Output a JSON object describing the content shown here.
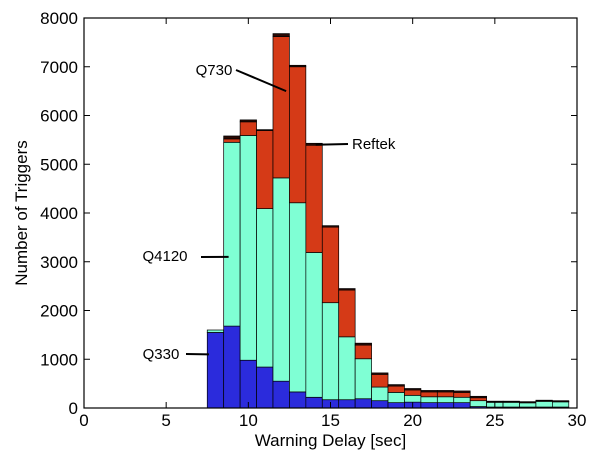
{
  "chart_data": {
    "type": "bar",
    "stacked": true,
    "xlabel": "Warning Delay [sec]",
    "ylabel": "Number of Triggers",
    "xlim": [
      0,
      30
    ],
    "ylim": [
      0,
      8000
    ],
    "xticks": [
      0,
      5,
      10,
      15,
      20,
      25,
      30
    ],
    "yticks": [
      0,
      1000,
      2000,
      3000,
      4000,
      5000,
      6000,
      7000,
      8000
    ],
    "grid": false,
    "bin_width": 1,
    "x": [
      8,
      9,
      10,
      11,
      12,
      13,
      14,
      15,
      16,
      17,
      18,
      19,
      20,
      21,
      22,
      23,
      24,
      25,
      26,
      27,
      28,
      29
    ],
    "series": [
      {
        "name": "Q330",
        "color": "#2b2bdc",
        "values": [
          1550,
          1680,
          980,
          840,
          550,
          330,
          220,
          170,
          170,
          190,
          150,
          110,
          120,
          110,
          110,
          110,
          30,
          20,
          20,
          20,
          20,
          20
        ]
      },
      {
        "name": "Q4120",
        "color": "#7fffd4",
        "values": [
          50,
          3770,
          4610,
          3250,
          4170,
          3880,
          2970,
          1990,
          1290,
          820,
          280,
          210,
          140,
          120,
          120,
          110,
          120,
          100,
          100,
          90,
          120,
          110
        ]
      },
      {
        "name": "Q730",
        "color": "#d53a17",
        "values": [
          0,
          70,
          280,
          1600,
          2900,
          2790,
          2200,
          1550,
          960,
          280,
          260,
          130,
          110,
          100,
          100,
          100,
          60,
          10,
          10,
          10,
          10,
          10
        ]
      },
      {
        "name": "Reftek",
        "color": "#2a0a05",
        "values": [
          0,
          60,
          40,
          20,
          60,
          30,
          40,
          30,
          30,
          40,
          30,
          30,
          30,
          30,
          30,
          30,
          30,
          10,
          10,
          10,
          10,
          10
        ]
      }
    ],
    "annotations": [
      {
        "text": "Q730",
        "target_series": "Q730",
        "x": 12.3,
        "y": 6500
      },
      {
        "text": "Reftek",
        "target_series": "Reftek",
        "x": 14.1,
        "y": 5400
      },
      {
        "text": "Q4120",
        "target_series": "Q4120",
        "x": 8.8,
        "y": 3100
      },
      {
        "text": "Q330",
        "target_series": "Q330",
        "x": 7.6,
        "y": 1100
      }
    ]
  },
  "colors": {
    "Q330": "#2b2bdc",
    "Q4120": "#7fffd4",
    "Q730": "#d53a17",
    "Reftek": "#2a0a05"
  }
}
